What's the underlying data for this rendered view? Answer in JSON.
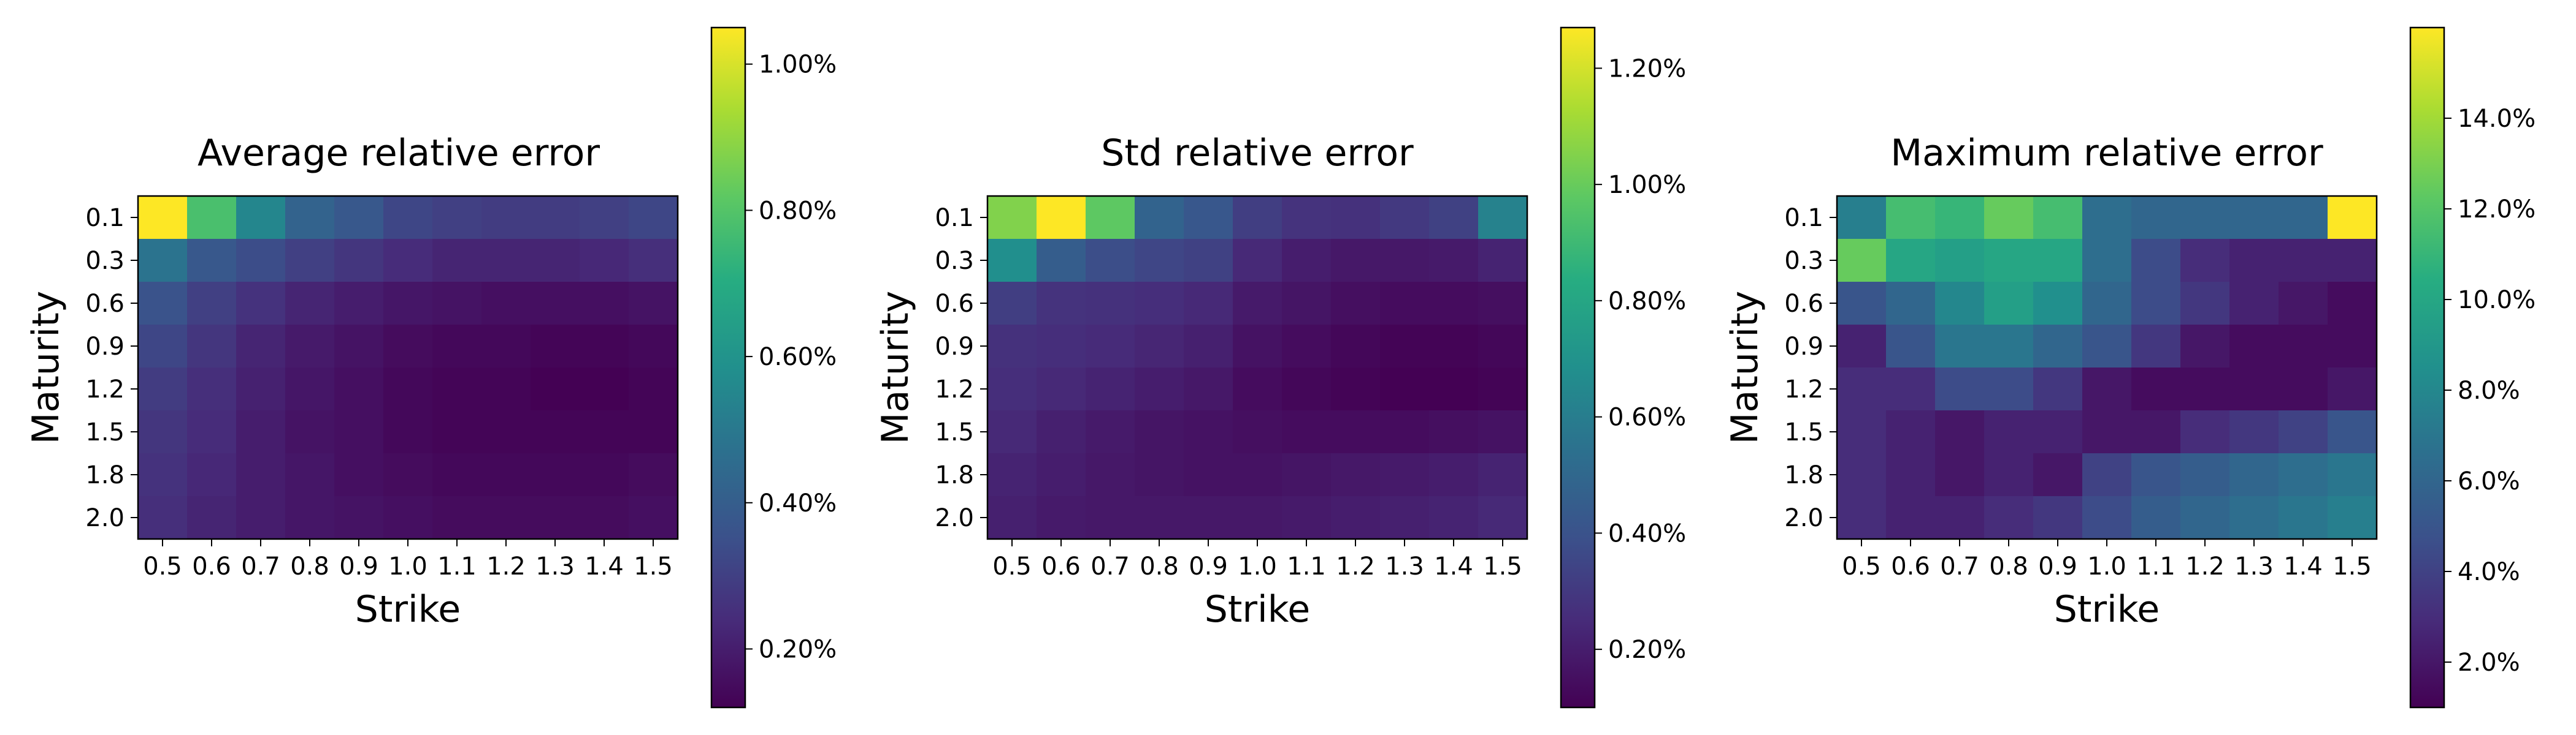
{
  "colormap": "viridis",
  "chart_data": [
    {
      "type": "heatmap",
      "title": "Average relative error",
      "xlabel": "Strike",
      "ylabel": "Maturity",
      "x_ticks": [
        "0.5",
        "0.6",
        "0.7",
        "0.8",
        "0.9",
        "1.0",
        "1.1",
        "1.2",
        "1.3",
        "1.4",
        "1.5"
      ],
      "y_ticks": [
        "0.1",
        "0.3",
        "0.6",
        "0.9",
        "1.2",
        "1.5",
        "1.8",
        "2.0"
      ],
      "value_unit": "%",
      "color_range": [
        0.12,
        1.05
      ],
      "colorbar_ticks": [
        {
          "value": 0.2,
          "label": "0.20%"
        },
        {
          "value": 0.4,
          "label": "0.40%"
        },
        {
          "value": 0.6,
          "label": "0.60%"
        },
        {
          "value": 0.8,
          "label": "0.80%"
        },
        {
          "value": 1.0,
          "label": "1.00%"
        }
      ],
      "values": [
        [
          1.05,
          0.78,
          0.55,
          0.42,
          0.38,
          0.32,
          0.3,
          0.29,
          0.29,
          0.3,
          0.32
        ],
        [
          0.48,
          0.38,
          0.34,
          0.3,
          0.27,
          0.24,
          0.22,
          0.22,
          0.22,
          0.23,
          0.25
        ],
        [
          0.36,
          0.3,
          0.26,
          0.22,
          0.2,
          0.18,
          0.17,
          0.16,
          0.16,
          0.16,
          0.17
        ],
        [
          0.32,
          0.27,
          0.22,
          0.19,
          0.17,
          0.15,
          0.14,
          0.14,
          0.13,
          0.13,
          0.14
        ],
        [
          0.29,
          0.25,
          0.21,
          0.18,
          0.16,
          0.14,
          0.13,
          0.13,
          0.12,
          0.12,
          0.13
        ],
        [
          0.27,
          0.24,
          0.2,
          0.17,
          0.16,
          0.14,
          0.13,
          0.13,
          0.13,
          0.13,
          0.13
        ],
        [
          0.26,
          0.23,
          0.2,
          0.18,
          0.16,
          0.15,
          0.14,
          0.14,
          0.14,
          0.14,
          0.15
        ],
        [
          0.25,
          0.22,
          0.2,
          0.18,
          0.17,
          0.16,
          0.15,
          0.15,
          0.15,
          0.15,
          0.16
        ]
      ]
    },
    {
      "type": "heatmap",
      "title": "Std relative error",
      "xlabel": "Strike",
      "ylabel": "Maturity",
      "x_ticks": [
        "0.5",
        "0.6",
        "0.7",
        "0.8",
        "0.9",
        "1.0",
        "1.1",
        "1.2",
        "1.3",
        "1.4",
        "1.5"
      ],
      "y_ticks": [
        "0.1",
        "0.3",
        "0.6",
        "0.9",
        "1.2",
        "1.5",
        "1.8",
        "2.0"
      ],
      "value_unit": "%",
      "color_range": [
        0.1,
        1.27
      ],
      "colorbar_ticks": [
        {
          "value": 0.2,
          "label": "0.20%"
        },
        {
          "value": 0.4,
          "label": "0.40%"
        },
        {
          "value": 0.6,
          "label": "0.60%"
        },
        {
          "value": 0.8,
          "label": "0.80%"
        },
        {
          "value": 1.0,
          "label": "1.00%"
        },
        {
          "value": 1.2,
          "label": "1.20%"
        }
      ],
      "values": [
        [
          1.05,
          1.27,
          0.98,
          0.48,
          0.42,
          0.32,
          0.28,
          0.27,
          0.3,
          0.33,
          0.62
        ],
        [
          0.68,
          0.45,
          0.38,
          0.35,
          0.33,
          0.24,
          0.2,
          0.18,
          0.18,
          0.19,
          0.22
        ],
        [
          0.32,
          0.28,
          0.27,
          0.26,
          0.24,
          0.19,
          0.17,
          0.15,
          0.14,
          0.14,
          0.15
        ],
        [
          0.27,
          0.26,
          0.25,
          0.23,
          0.21,
          0.16,
          0.14,
          0.12,
          0.11,
          0.11,
          0.12
        ],
        [
          0.26,
          0.24,
          0.22,
          0.2,
          0.18,
          0.14,
          0.12,
          0.11,
          0.1,
          0.1,
          0.11
        ],
        [
          0.24,
          0.21,
          0.19,
          0.17,
          0.16,
          0.15,
          0.14,
          0.14,
          0.14,
          0.15,
          0.16
        ],
        [
          0.22,
          0.2,
          0.18,
          0.17,
          0.16,
          0.16,
          0.17,
          0.18,
          0.19,
          0.2,
          0.22
        ],
        [
          0.21,
          0.19,
          0.18,
          0.18,
          0.18,
          0.18,
          0.19,
          0.2,
          0.21,
          0.22,
          0.24
        ]
      ]
    },
    {
      "type": "heatmap",
      "title": "Maximum relative error",
      "xlabel": "Strike",
      "ylabel": "Maturity",
      "x_ticks": [
        "0.5",
        "0.6",
        "0.7",
        "0.8",
        "0.9",
        "1.0",
        "1.1",
        "1.2",
        "1.3",
        "1.4",
        "1.5"
      ],
      "y_ticks": [
        "0.1",
        "0.3",
        "0.6",
        "0.9",
        "1.2",
        "1.5",
        "1.8",
        "2.0"
      ],
      "value_unit": "%",
      "color_range": [
        1.0,
        16.0
      ],
      "colorbar_ticks": [
        {
          "value": 2.0,
          "label": "2.0%"
        },
        {
          "value": 4.0,
          "label": "4.0%"
        },
        {
          "value": 6.0,
          "label": "6.0%"
        },
        {
          "value": 8.0,
          "label": "8.0%"
        },
        {
          "value": 10.0,
          "label": "10.0%"
        },
        {
          "value": 12.0,
          "label": "12.0%"
        },
        {
          "value": 14.0,
          "label": "14.0%"
        }
      ],
      "values": [
        [
          7.5,
          11.5,
          11.0,
          12.5,
          11.5,
          6.5,
          6.0,
          6.0,
          6.0,
          6.0,
          16.0
        ],
        [
          12.5,
          10.0,
          9.5,
          10.0,
          10.0,
          6.5,
          4.5,
          3.0,
          2.5,
          2.5,
          2.5
        ],
        [
          5.0,
          6.0,
          8.0,
          9.5,
          8.5,
          6.0,
          4.5,
          3.5,
          2.5,
          2.0,
          1.5
        ],
        [
          2.5,
          5.0,
          7.0,
          7.0,
          6.0,
          5.0,
          3.5,
          2.0,
          1.5,
          1.5,
          1.5
        ],
        [
          3.0,
          3.0,
          4.5,
          4.5,
          3.5,
          2.0,
          1.5,
          1.5,
          1.5,
          1.5,
          2.0
        ],
        [
          3.0,
          2.5,
          2.0,
          2.5,
          2.5,
          2.0,
          2.0,
          3.0,
          3.5,
          4.0,
          5.0
        ],
        [
          3.0,
          2.5,
          2.0,
          2.5,
          2.0,
          4.0,
          5.0,
          5.5,
          6.0,
          6.5,
          7.0
        ],
        [
          3.0,
          2.5,
          2.5,
          3.0,
          3.5,
          4.5,
          5.5,
          6.0,
          6.5,
          7.0,
          7.5
        ]
      ]
    }
  ]
}
